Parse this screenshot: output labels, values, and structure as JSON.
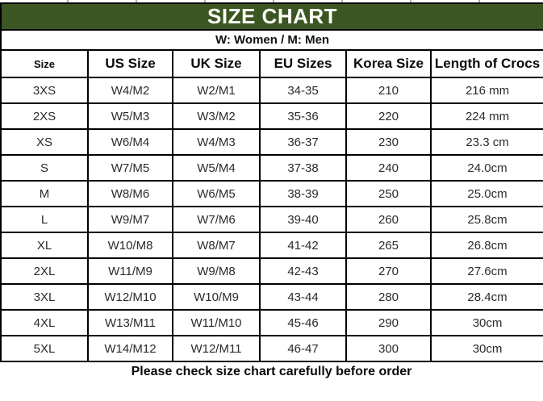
{
  "banner": {
    "title": "SIZE CHART"
  },
  "subtitle": "W: Women / M: Men",
  "table": {
    "headers": [
      "Size",
      "US Size",
      "UK Size",
      "EU Sizes",
      "Korea Size",
      "Length of Crocs"
    ],
    "rows": [
      [
        "3XS",
        "W4/M2",
        "W2/M1",
        "34-35",
        "210",
        "216 mm"
      ],
      [
        "2XS",
        "W5/M3",
        "W3/M2",
        "35-36",
        "220",
        "224 mm"
      ],
      [
        "XS",
        "W6/M4",
        "W4/M3",
        "36-37",
        "230",
        "23.3 cm"
      ],
      [
        "S",
        "W7/M5",
        "W5/M4",
        "37-38",
        "240",
        "24.0cm"
      ],
      [
        "M",
        "W8/M6",
        "W6/M5",
        "38-39",
        "250",
        "25.0cm"
      ],
      [
        "L",
        "W9/M7",
        "W7/M6",
        "39-40",
        "260",
        "25.8cm"
      ],
      [
        "XL",
        "W10/M8",
        "W8/M7",
        "41-42",
        "265",
        "26.8cm"
      ],
      [
        "2XL",
        "W11/M9",
        "W9/M8",
        "42-43",
        "270",
        "27.6cm"
      ],
      [
        "3XL",
        "W12/M10",
        "W10/M9",
        "43-44",
        "280",
        "28.4cm"
      ],
      [
        "4XL",
        "W13/M11",
        "W11/M10",
        "45-46",
        "290",
        "30cm"
      ],
      [
        "5XL",
        "W14/M12",
        "W12/M11",
        "46-47",
        "300",
        "30cm"
      ]
    ]
  },
  "footer": "Please check size chart carefully before order",
  "colors": {
    "banner_bg": "#3B5622",
    "banner_text": "#FDFDF8",
    "border": "#000000"
  }
}
